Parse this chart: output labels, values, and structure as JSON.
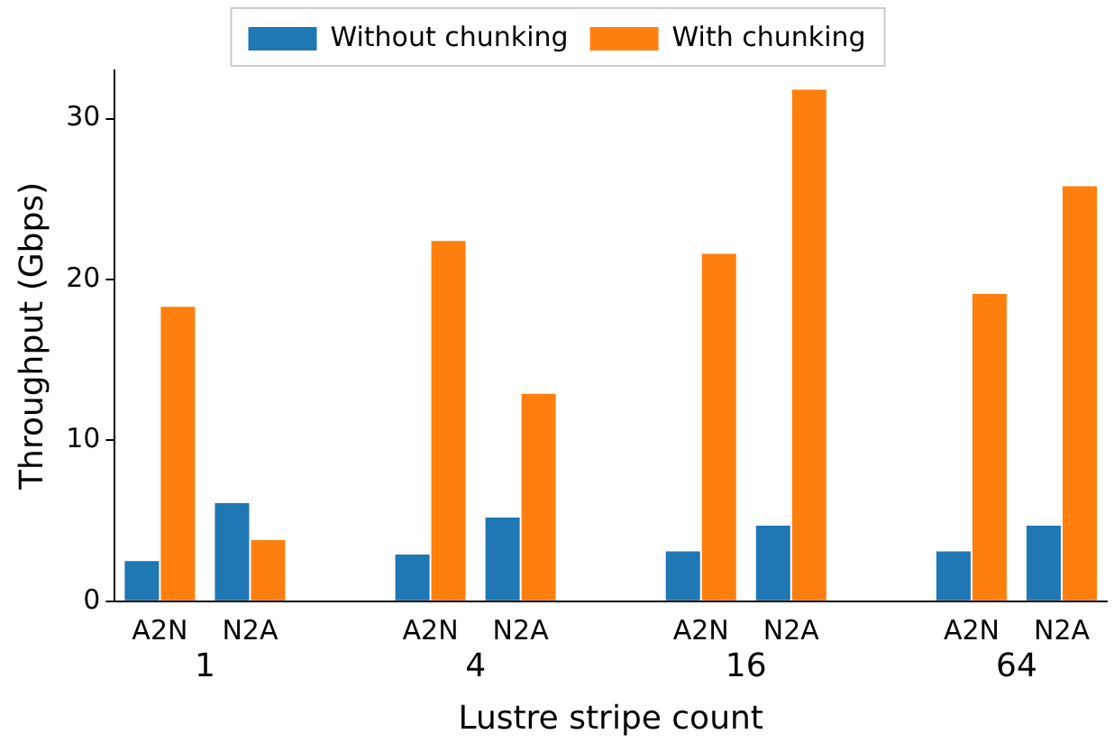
{
  "chart_data": {
    "type": "bar",
    "xlabel": "Lustre stripe count",
    "ylabel": "Throughput (Gbps)",
    "categories": [
      "A2N",
      "N2A",
      null,
      "A2N",
      "N2A",
      null,
      "A2N",
      "N2A",
      null,
      "A2N",
      "N2A"
    ],
    "series": [
      {
        "name": "Without chunking",
        "color": "#1f77b4",
        "values": [
          2.5,
          6.1,
          null,
          2.9,
          5.2,
          null,
          3.1,
          4.7,
          null,
          3.1,
          4.7
        ]
      },
      {
        "name": "With chunking",
        "color": "#ff7f0e",
        "values": [
          18.3,
          3.8,
          null,
          22.4,
          12.9,
          null,
          21.6,
          31.8,
          null,
          19.1,
          25.8
        ]
      }
    ],
    "annotations": [
      "1",
      "4",
      "16",
      "64"
    ],
    "ylim": [
      0,
      33
    ],
    "yticks": [
      0,
      10,
      20,
      30
    ],
    "grid": false,
    "legend": "top"
  }
}
